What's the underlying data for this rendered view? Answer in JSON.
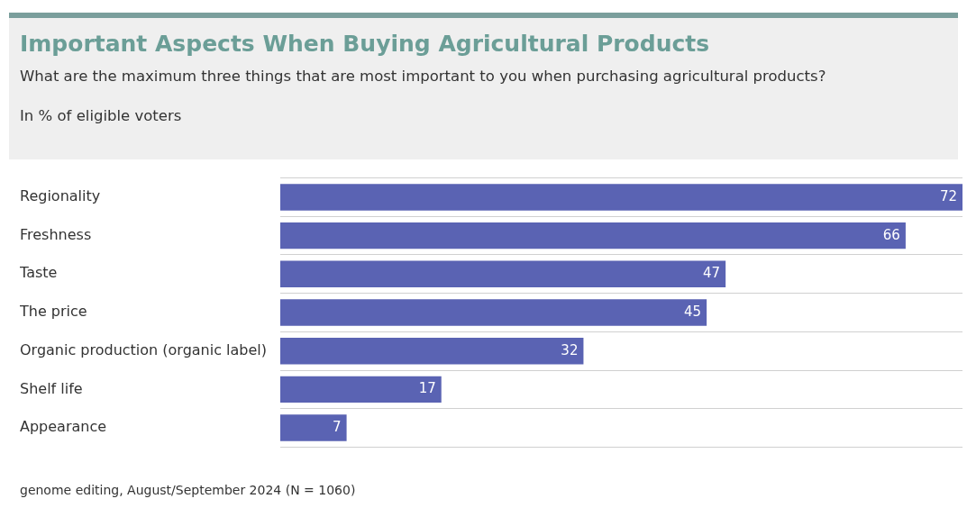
{
  "chart_data": {
    "type": "bar",
    "orientation": "horizontal",
    "title": "Important Aspects When Buying Agricultural Products",
    "subtitle": "What are the maximum three things that are most important to you when purchasing agricultural products?",
    "xlabel": "In % of eligible voters",
    "categories": [
      "Regionality",
      "Freshness",
      "Taste",
      "The price",
      "Organic production (organic label)",
      "Shelf life",
      "Appearance"
    ],
    "values": [
      72,
      66,
      47,
      45,
      32,
      17,
      7
    ],
    "color": "#5a63b3",
    "data_labels": true,
    "grid": "y",
    "legend": false,
    "annotations": [
      "genome editing, August/September 2024 (N = 1060)"
    ]
  }
}
